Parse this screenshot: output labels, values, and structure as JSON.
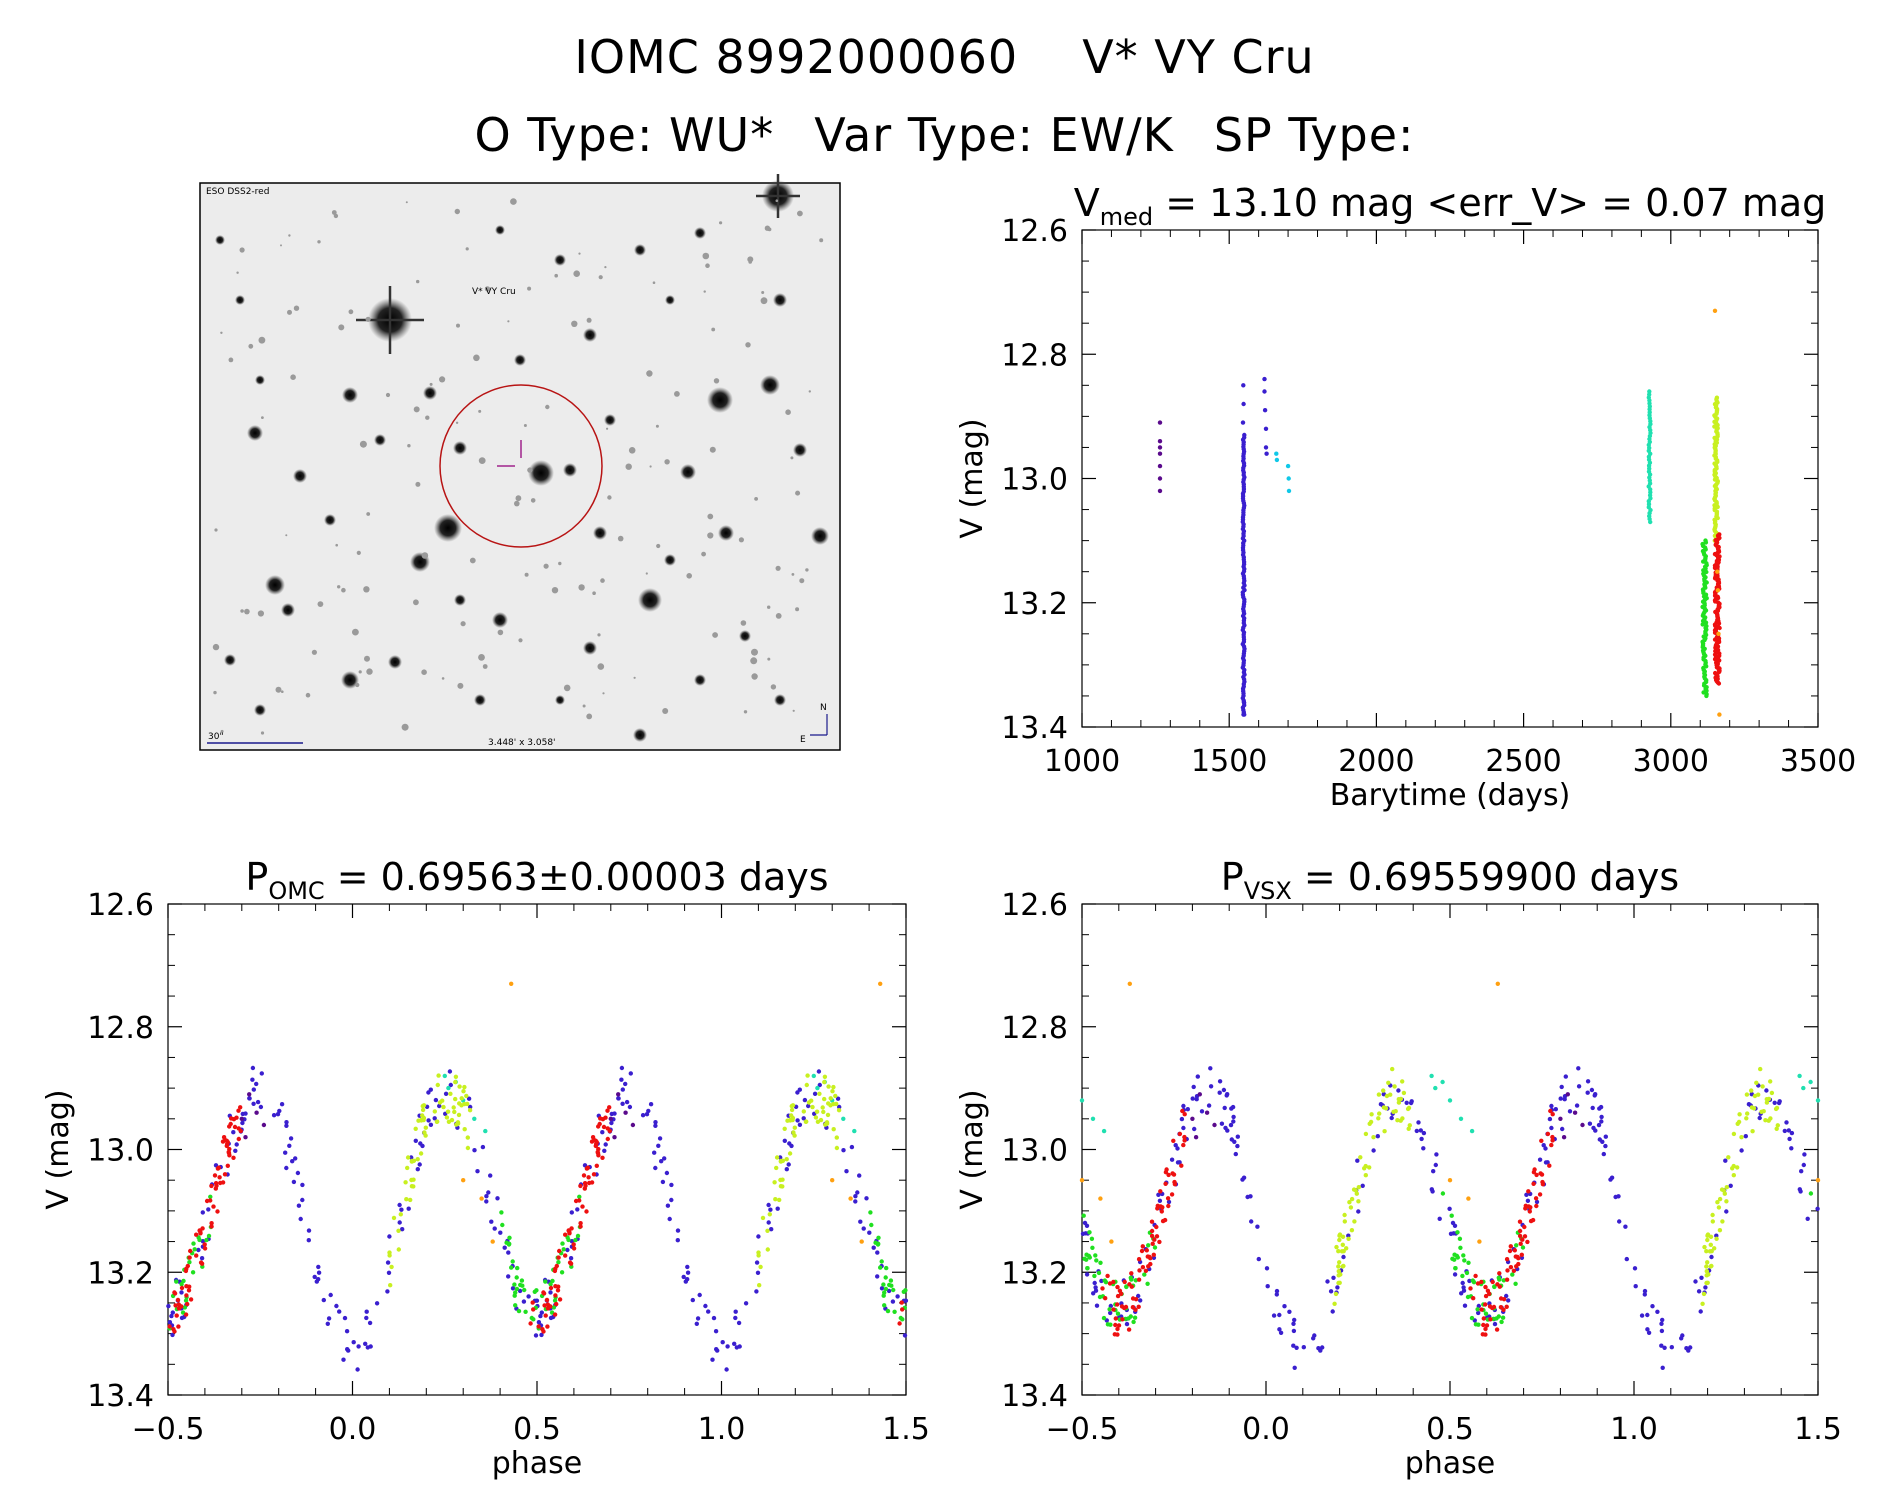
{
  "header": {
    "id": "IOMC 8992000060",
    "name": "V* VY Cru",
    "o_type": "O Type: WU*",
    "var_type": "Var Type: EW/K",
    "sp_type": "SP Type:"
  },
  "image_panel": {
    "survey_label": "ESO DSS2-red",
    "target_label": "V* VY Cru",
    "scale_label": "30\"",
    "fov_label": "3.448' x 3.058'",
    "compass_n": "N",
    "compass_e": "E"
  },
  "colors": {
    "purple": "#5a0a8c",
    "blue": "#3a1fcf",
    "cyan": "#10c8e8",
    "teal": "#20e0b0",
    "yellowgreen": "#c8f020",
    "green": "#20e020",
    "orange": "#ffa010",
    "red": "#ee1010",
    "circle": "#b81414",
    "image_text": "#1a1a8c"
  },
  "chart_data": [
    {
      "type": "scatter",
      "title": "V_med = 13.10 mag <err_V> = 0.07 mag",
      "title_parts": {
        "v": "V",
        "sub": "med",
        "rest": " = 13.10 mag <err_V> = 0.07 mag"
      },
      "xlabel": "Barytime (days)",
      "ylabel": "V (mag)",
      "xlim": [
        1000,
        3500
      ],
      "ylim": [
        12.6,
        13.4
      ],
      "y_inverted": true,
      "xticks": [
        "1000",
        "1500",
        "2000",
        "2500",
        "3000",
        "3500"
      ],
      "yticks": [
        "12.6",
        "12.8",
        "13.0",
        "13.2",
        "13.4"
      ],
      "series": [
        {
          "color": "purple",
          "points": [
            [
              1265,
              12.91
            ],
            [
              1265,
              12.94
            ],
            [
              1265,
              12.95
            ],
            [
              1265,
              12.96
            ],
            [
              1265,
              12.98
            ],
            [
              1265,
              13.0
            ],
            [
              1265,
              13.02
            ]
          ]
        },
        {
          "color": "blue",
          "range": {
            "x": [
              1546,
              1552
            ],
            "y": [
              12.93,
              13.38
            ],
            "n": 120
          }
        },
        {
          "color": "blue",
          "points": [
            [
              1548,
              12.85
            ],
            [
              1549,
              12.88
            ],
            [
              1547,
              12.91
            ],
            [
              1550,
              13.36
            ],
            [
              1551,
              13.38
            ],
            [
              1620,
              12.84
            ],
            [
              1620,
              12.86
            ],
            [
              1622,
              12.89
            ],
            [
              1625,
              12.92
            ],
            [
              1625,
              12.95
            ],
            [
              1627,
              12.96
            ]
          ]
        },
        {
          "color": "cyan",
          "points": [
            [
              1660,
              12.96
            ],
            [
              1662,
              12.97
            ],
            [
              1700,
              12.98
            ],
            [
              1702,
              13.0
            ],
            [
              1703,
              13.02
            ]
          ]
        },
        {
          "color": "teal",
          "range": {
            "x": [
              2925,
              2931
            ],
            "y": [
              12.86,
              13.07
            ],
            "n": 45
          }
        },
        {
          "color": "green",
          "range": {
            "x": [
              3108,
              3122
            ],
            "y": [
              13.1,
              13.35
            ],
            "n": 90
          }
        },
        {
          "color": "yellowgreen",
          "range": {
            "x": [
              3148,
              3160
            ],
            "y": [
              12.87,
              13.1
            ],
            "n": 90
          }
        },
        {
          "color": "red",
          "range": {
            "x": [
              3150,
              3166
            ],
            "y": [
              13.09,
              13.33
            ],
            "n": 130
          }
        },
        {
          "color": "orange",
          "points": [
            [
              3150,
              12.73
            ],
            [
              3158,
              13.15
            ],
            [
              3160,
              13.18
            ],
            [
              3162,
              13.25
            ],
            [
              3165,
              13.38
            ]
          ]
        }
      ]
    },
    {
      "type": "scatter",
      "title": "P_OMC = 0.69563±0.00003 days",
      "title_parts": {
        "v": "P",
        "sub": "OMC",
        "rest": " = 0.69563±0.00003 days"
      },
      "xlabel": "phase",
      "ylabel": "V (mag)",
      "xlim": [
        -0.5,
        1.5
      ],
      "ylim": [
        12.6,
        13.4
      ],
      "y_inverted": true,
      "xticks": [
        "−0.5",
        "0.0",
        "0.5",
        "1.0",
        "1.5"
      ],
      "yticks": [
        "12.6",
        "12.8",
        "13.0",
        "13.2",
        "13.4"
      ],
      "phase_offset": 0.0,
      "series": [
        {
          "color": "blue",
          "phase_range": [
            0.0,
            1.0
          ],
          "n": 150
        },
        {
          "color": "purple",
          "points": [
            [
              0.72,
              12.91
            ],
            [
              0.74,
              12.94
            ],
            [
              0.7,
              12.95
            ],
            [
              0.76,
              12.96
            ],
            [
              0.71,
              12.98
            ]
          ]
        },
        {
          "color": "teal",
          "points": [
            [
              0.25,
              12.88
            ],
            [
              0.28,
              12.89
            ],
            [
              0.3,
              12.92
            ],
            [
              0.33,
              12.95
            ],
            [
              0.36,
              12.97
            ],
            [
              0.26,
              12.9
            ]
          ]
        },
        {
          "color": "yellowgreen",
          "phase_range": [
            0.1,
            0.32
          ],
          "n": 70
        },
        {
          "color": "green",
          "phase_range": [
            0.4,
            0.62
          ],
          "n": 50
        },
        {
          "color": "red",
          "phase_range": [
            0.48,
            0.7
          ],
          "n": 80
        },
        {
          "color": "orange",
          "points": [
            [
              0.43,
              12.73
            ],
            [
              0.38,
              13.15
            ],
            [
              0.35,
              13.08
            ],
            [
              0.3,
              13.05
            ]
          ]
        }
      ]
    },
    {
      "type": "scatter",
      "title": "P_VSX = 0.69559900 days",
      "title_parts": {
        "v": "P",
        "sub": "VSX",
        "rest": " = 0.69559900 days"
      },
      "xlabel": "phase",
      "ylabel": "V (mag)",
      "xlim": [
        -0.5,
        1.5
      ],
      "ylim": [
        12.6,
        13.4
      ],
      "y_inverted": true,
      "xticks": [
        "−0.5",
        "0.0",
        "0.5",
        "1.0",
        "1.5"
      ],
      "yticks": [
        "12.6",
        "12.8",
        "13.0",
        "13.2",
        "13.4"
      ],
      "phase_offset": 0.1,
      "series": [
        {
          "color": "blue",
          "phase_range": [
            0.0,
            1.0
          ],
          "n": 150
        },
        {
          "color": "purple",
          "points": [
            [
              0.72,
              12.91
            ],
            [
              0.74,
              12.94
            ],
            [
              0.7,
              12.95
            ],
            [
              0.76,
              12.96
            ],
            [
              0.71,
              12.98
            ]
          ]
        },
        {
          "color": "teal",
          "points": [
            [
              0.35,
              12.88
            ],
            [
              0.38,
              12.89
            ],
            [
              0.4,
              12.92
            ],
            [
              0.43,
              12.95
            ],
            [
              0.46,
              12.97
            ],
            [
              0.36,
              12.9
            ]
          ]
        },
        {
          "color": "yellowgreen",
          "phase_range": [
            0.18,
            0.4
          ],
          "n": 70
        },
        {
          "color": "green",
          "phase_range": [
            0.48,
            0.7
          ],
          "n": 50
        },
        {
          "color": "red",
          "phase_range": [
            0.55,
            0.78
          ],
          "n": 80
        },
        {
          "color": "orange",
          "points": [
            [
              0.53,
              12.73
            ],
            [
              0.48,
              13.15
            ],
            [
              0.45,
              13.08
            ],
            [
              0.4,
              13.05
            ]
          ]
        }
      ]
    }
  ]
}
